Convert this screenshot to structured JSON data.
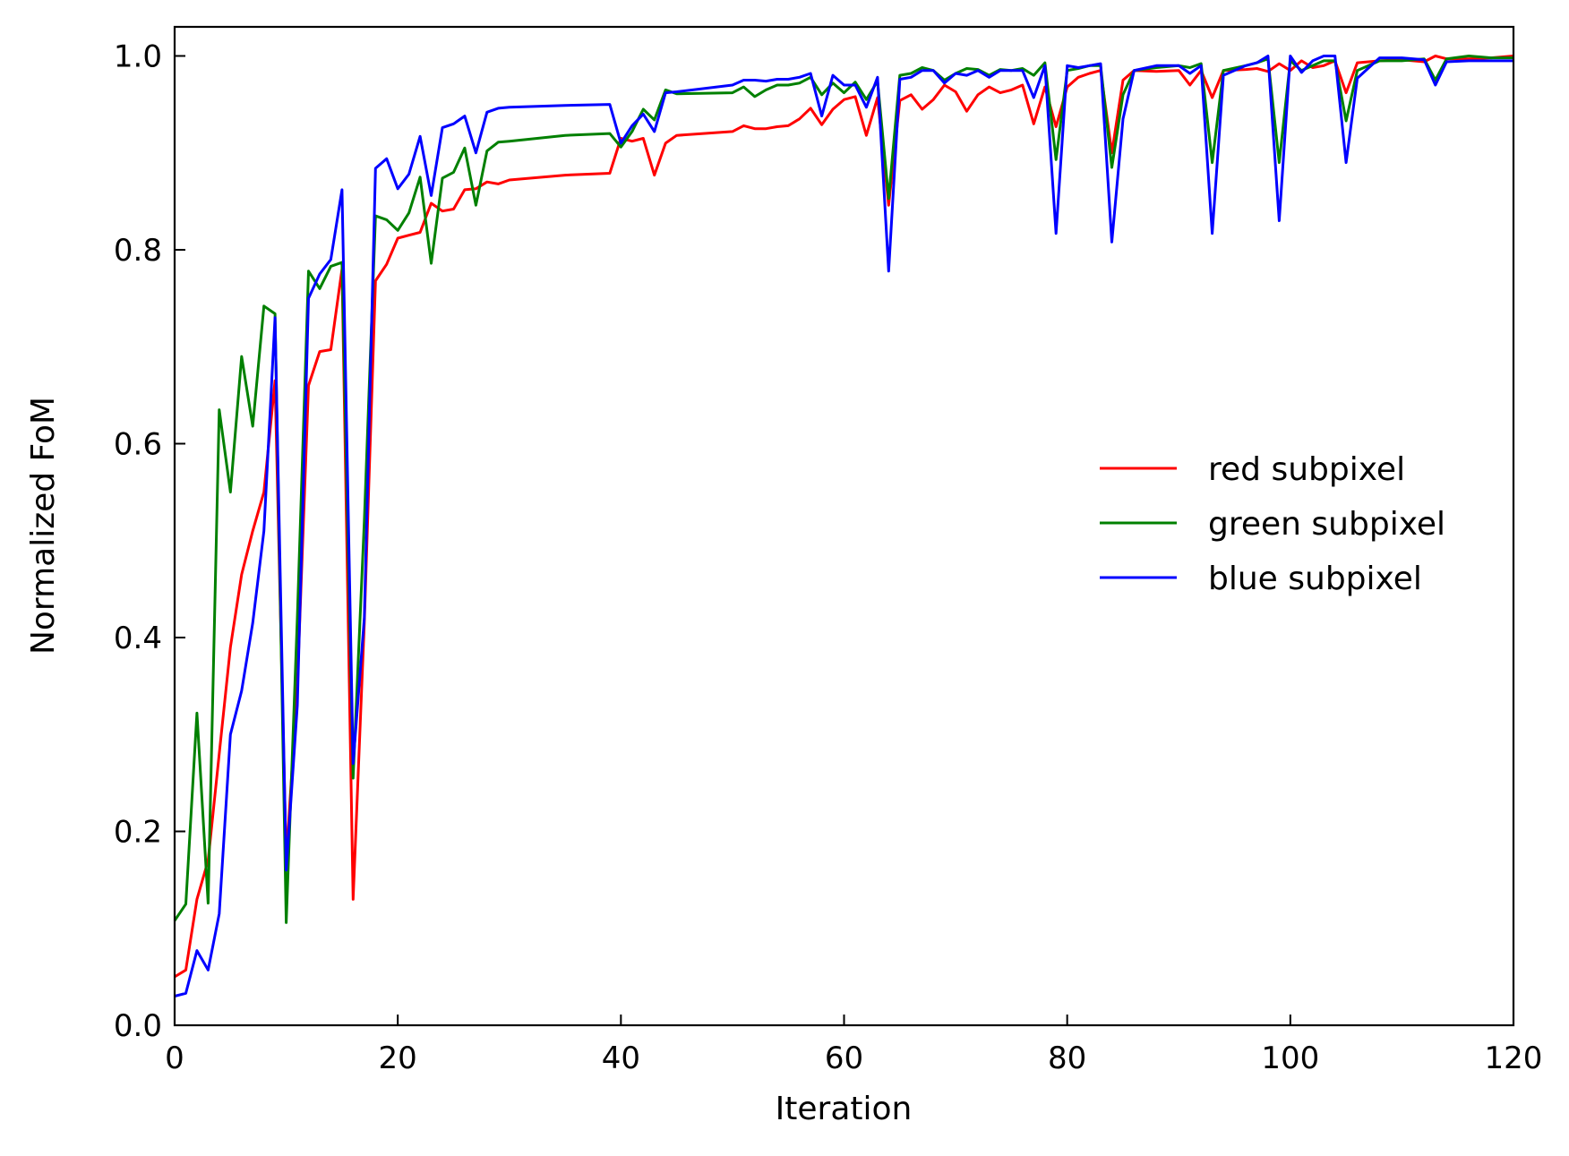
{
  "chart_data": {
    "type": "line",
    "title": "",
    "xlabel": "Iteration",
    "ylabel": "Normalized FoM",
    "xlim": [
      0,
      120
    ],
    "ylim": [
      0.0,
      1.03
    ],
    "xticks": [
      0,
      20,
      40,
      60,
      80,
      100,
      120
    ],
    "xtick_labels": [
      "0",
      "20",
      "40",
      "60",
      "80",
      "100",
      "120"
    ],
    "yticks": [
      0.0,
      0.2,
      0.4,
      0.6,
      0.8,
      1.0
    ],
    "ytick_labels": [
      "0.0",
      "0.2",
      "0.4",
      "0.6",
      "0.8",
      "1.0"
    ],
    "grid": false,
    "legend_position": "right",
    "series": [
      {
        "name": "red subpixel",
        "color": "#ff0000",
        "x": [
          0,
          1,
          2,
          3,
          4,
          5,
          6,
          7,
          8,
          9,
          10,
          11,
          12,
          13,
          14,
          15,
          16,
          17,
          18,
          19,
          20,
          21,
          22,
          23,
          24,
          25,
          26,
          27,
          28,
          29,
          30,
          35,
          39,
          40,
          41,
          42,
          43,
          44,
          45,
          50,
          51,
          52,
          53,
          54,
          55,
          56,
          57,
          58,
          59,
          60,
          61,
          62,
          63,
          64,
          65,
          66,
          67,
          68,
          69,
          70,
          71,
          72,
          73,
          74,
          75,
          76,
          77,
          78,
          79,
          80,
          81,
          82,
          83,
          84,
          85,
          86,
          88,
          90,
          91,
          92,
          93,
          94,
          96,
          97,
          98,
          99,
          100,
          101,
          102,
          103,
          104,
          105,
          106,
          108,
          110,
          112,
          113,
          114,
          116,
          118,
          120
        ],
        "y": [
          0.05,
          0.057,
          0.13,
          0.17,
          0.28,
          0.39,
          0.465,
          0.51,
          0.55,
          0.665,
          0.17,
          0.35,
          0.66,
          0.695,
          0.697,
          0.78,
          0.13,
          0.415,
          0.768,
          0.785,
          0.812,
          0.815,
          0.818,
          0.848,
          0.84,
          0.842,
          0.862,
          0.863,
          0.87,
          0.868,
          0.872,
          0.877,
          0.879,
          0.915,
          0.912,
          0.915,
          0.877,
          0.91,
          0.918,
          0.922,
          0.928,
          0.925,
          0.925,
          0.927,
          0.928,
          0.935,
          0.946,
          0.929,
          0.945,
          0.955,
          0.958,
          0.918,
          0.957,
          0.846,
          0.954,
          0.96,
          0.945,
          0.955,
          0.97,
          0.963,
          0.943,
          0.96,
          0.968,
          0.962,
          0.965,
          0.97,
          0.93,
          0.968,
          0.927,
          0.968,
          0.978,
          0.982,
          0.985,
          0.9,
          0.975,
          0.985,
          0.984,
          0.985,
          0.97,
          0.985,
          0.957,
          0.985,
          0.986,
          0.987,
          0.984,
          0.992,
          0.985,
          0.995,
          0.988,
          0.99,
          0.995,
          0.962,
          0.993,
          0.995,
          0.996,
          0.994,
          1.0,
          0.997,
          0.997,
          0.998,
          1.0
        ]
      },
      {
        "name": "green subpixel",
        "color": "#008000",
        "x": [
          0,
          1,
          2,
          3,
          4,
          5,
          6,
          7,
          8,
          9,
          10,
          11,
          12,
          13,
          14,
          15,
          16,
          17,
          18,
          19,
          20,
          21,
          22,
          23,
          24,
          25,
          26,
          27,
          28,
          29,
          30,
          35,
          39,
          40,
          41,
          42,
          43,
          44,
          45,
          50,
          51,
          52,
          53,
          54,
          55,
          56,
          57,
          58,
          59,
          60,
          61,
          62,
          63,
          64,
          65,
          66,
          67,
          68,
          69,
          70,
          71,
          72,
          73,
          74,
          75,
          76,
          77,
          78,
          79,
          80,
          81,
          82,
          83,
          84,
          85,
          86,
          88,
          90,
          91,
          92,
          93,
          94,
          96,
          97,
          98,
          99,
          100,
          101,
          102,
          103,
          104,
          105,
          106,
          108,
          110,
          112,
          113,
          114,
          116,
          118,
          120
        ],
        "y": [
          0.108,
          0.125,
          0.322,
          0.126,
          0.635,
          0.55,
          0.69,
          0.618,
          0.742,
          0.734,
          0.106,
          0.42,
          0.778,
          0.76,
          0.783,
          0.787,
          0.255,
          0.52,
          0.835,
          0.831,
          0.82,
          0.838,
          0.875,
          0.786,
          0.874,
          0.88,
          0.905,
          0.846,
          0.902,
          0.911,
          0.912,
          0.918,
          0.92,
          0.906,
          0.922,
          0.945,
          0.934,
          0.965,
          0.961,
          0.962,
          0.968,
          0.958,
          0.965,
          0.97,
          0.97,
          0.972,
          0.978,
          0.96,
          0.972,
          0.962,
          0.973,
          0.955,
          0.974,
          0.853,
          0.98,
          0.982,
          0.988,
          0.985,
          0.975,
          0.982,
          0.987,
          0.986,
          0.98,
          0.986,
          0.985,
          0.987,
          0.98,
          0.993,
          0.893,
          0.985,
          0.987,
          0.99,
          0.99,
          0.885,
          0.96,
          0.985,
          0.988,
          0.99,
          0.988,
          0.992,
          0.89,
          0.985,
          0.99,
          0.993,
          0.997,
          0.89,
          0.995,
          0.985,
          0.99,
          0.995,
          0.995,
          0.933,
          0.985,
          0.995,
          0.995,
          0.997,
          0.975,
          0.997,
          1.0,
          0.998,
          0.998
        ]
      },
      {
        "name": "blue subpixel",
        "color": "#0000ff",
        "x": [
          0,
          1,
          2,
          3,
          4,
          5,
          6,
          7,
          8,
          9,
          10,
          11,
          12,
          13,
          14,
          15,
          16,
          17,
          18,
          19,
          20,
          21,
          22,
          23,
          24,
          25,
          26,
          27,
          28,
          29,
          30,
          35,
          39,
          40,
          41,
          42,
          43,
          44,
          45,
          50,
          51,
          52,
          53,
          54,
          55,
          56,
          57,
          58,
          59,
          60,
          61,
          62,
          63,
          64,
          65,
          66,
          67,
          68,
          69,
          70,
          71,
          72,
          73,
          74,
          75,
          76,
          77,
          78,
          79,
          80,
          81,
          82,
          83,
          84,
          85,
          86,
          88,
          90,
          91,
          92,
          93,
          94,
          96,
          97,
          98,
          99,
          100,
          101,
          102,
          103,
          104,
          105,
          106,
          108,
          110,
          112,
          113,
          114,
          116,
          118,
          120
        ],
        "y": [
          0.03,
          0.033,
          0.077,
          0.057,
          0.115,
          0.3,
          0.345,
          0.415,
          0.51,
          0.73,
          0.16,
          0.33,
          0.75,
          0.775,
          0.79,
          0.862,
          0.27,
          0.42,
          0.884,
          0.894,
          0.863,
          0.878,
          0.917,
          0.856,
          0.926,
          0.93,
          0.938,
          0.9,
          0.942,
          0.946,
          0.947,
          0.949,
          0.95,
          0.91,
          0.928,
          0.94,
          0.922,
          0.962,
          0.963,
          0.97,
          0.975,
          0.975,
          0.974,
          0.976,
          0.976,
          0.978,
          0.982,
          0.938,
          0.98,
          0.97,
          0.97,
          0.947,
          0.978,
          0.778,
          0.976,
          0.978,
          0.985,
          0.985,
          0.972,
          0.982,
          0.98,
          0.985,
          0.978,
          0.985,
          0.985,
          0.985,
          0.957,
          0.99,
          0.817,
          0.99,
          0.988,
          0.99,
          0.992,
          0.808,
          0.935,
          0.985,
          0.99,
          0.99,
          0.982,
          0.99,
          0.817,
          0.98,
          0.99,
          0.993,
          1.0,
          0.83,
          1.0,
          0.983,
          0.995,
          1.0,
          1.0,
          0.89,
          0.977,
          0.998,
          0.998,
          0.996,
          0.97,
          0.994,
          0.995,
          0.995,
          0.995
        ]
      }
    ]
  }
}
